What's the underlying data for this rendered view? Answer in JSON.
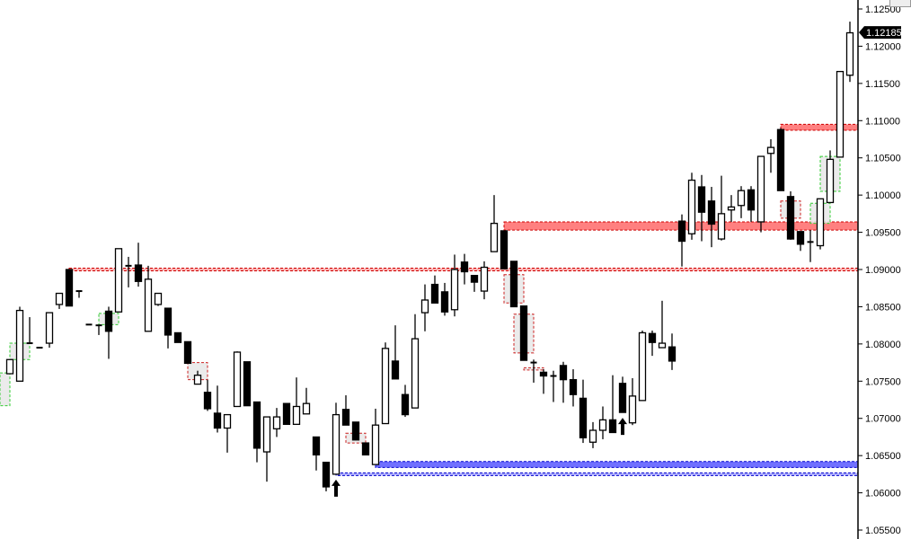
{
  "chart_data": {
    "type": "candlestick",
    "title": "",
    "ylim": [
      1.055,
      1.125
    ],
    "y_ticks": [
      "1.05500",
      "1.06000",
      "1.06500",
      "1.07000",
      "1.07500",
      "1.08000",
      "1.08500",
      "1.09000",
      "1.09500",
      "1.10000",
      "1.10500",
      "1.11000",
      "1.11500",
      "1.12000",
      "1.12500"
    ],
    "current_price": "1.12185",
    "colors": {
      "bull_body": "#ffffff",
      "bear_body": "#000000",
      "supply_zone": "#ff8080",
      "supply_line": "#cc0000",
      "demand_zone": "#7070ff",
      "demand_line": "#0000cc",
      "green_box": "#33cc33",
      "red_box": "#cc2222",
      "box_fill": "#e8e8e8"
    },
    "candles": [
      [
        1.076,
        1.0779,
        1.076,
        1.0779
      ],
      [
        1.075,
        1.085,
        1.075,
        1.0845
      ],
      [
        1.0801,
        1.0836,
        1.0801,
        1.0801
      ],
      [
        1.0795,
        1.0795,
        1.0795,
        1.0795
      ],
      [
        1.0801,
        1.0842,
        1.0795,
        1.0842
      ],
      [
        1.0853,
        1.0868,
        1.0847,
        1.0868
      ],
      [
        1.09,
        1.09,
        1.0851,
        1.0851
      ],
      [
        1.0871,
        1.0871,
        1.0862,
        1.0871
      ],
      [
        1.0826,
        1.0826,
        1.0826,
        1.0826
      ],
      [
        1.0825,
        1.0825,
        1.0812,
        1.0825
      ],
      [
        1.0844,
        1.085,
        1.078,
        1.0817
      ],
      [
        1.0843,
        1.0928,
        1.0843,
        1.0928
      ],
      [
        1.0905,
        1.0917,
        1.0876,
        1.0905
      ],
      [
        1.0906,
        1.0936,
        1.0877,
        1.0884
      ],
      [
        1.0817,
        1.0905,
        1.0817,
        1.0887
      ],
      [
        1.0853,
        1.0868,
        1.0851,
        1.0868
      ],
      [
        1.0848,
        1.0848,
        1.0794,
        1.0812
      ],
      [
        1.0815,
        1.0815,
        1.0802,
        1.0802
      ],
      [
        1.0803,
        1.0803,
        1.0774,
        1.0774
      ],
      [
        1.0746,
        1.0764,
        1.0746,
        1.0758
      ],
      [
        1.0735,
        1.0752,
        1.071,
        1.0713
      ],
      [
        1.0707,
        1.0744,
        1.0681,
        1.0687
      ],
      [
        1.0687,
        1.0705,
        1.0654,
        1.0705
      ],
      [
        1.0716,
        1.079,
        1.0716,
        1.0789
      ],
      [
        1.0776,
        1.0776,
        1.0717,
        1.0717
      ],
      [
        1.0722,
        1.0722,
        1.0641,
        1.066
      ],
      [
        1.0655,
        1.0702,
        1.0615,
        1.0702
      ],
      [
        1.0686,
        1.0714,
        1.0675,
        1.0702
      ],
      [
        1.072,
        1.072,
        1.0692,
        1.0692
      ],
      [
        1.0692,
        1.0755,
        1.0692,
        1.0716
      ],
      [
        1.0706,
        1.0741,
        1.0706,
        1.072
      ],
      [
        1.0675,
        1.0675,
        1.063,
        1.0651
      ],
      [
        1.0641,
        1.0641,
        1.0602,
        1.0608
      ],
      [
        1.0625,
        1.0721,
        1.0625,
        1.0705
      ],
      [
        1.0712,
        1.0731,
        1.0691,
        1.0691
      ],
      [
        1.0695,
        1.0695,
        1.0671,
        1.0671
      ],
      [
        1.0667,
        1.0667,
        1.0651,
        1.0651
      ],
      [
        1.0638,
        1.0713,
        1.0638,
        1.0691
      ],
      [
        1.0693,
        1.0802,
        1.0693,
        1.0794
      ],
      [
        1.0777,
        1.0825,
        1.0753,
        1.0753
      ],
      [
        1.0732,
        1.0745,
        1.0702,
        1.0705
      ],
      [
        1.0714,
        1.084,
        1.0714,
        1.0807
      ],
      [
        1.0842,
        1.088,
        1.0817,
        1.0859
      ],
      [
        1.088,
        1.0892,
        1.0855,
        1.0855
      ],
      [
        1.087,
        1.0882,
        1.0838,
        1.0843
      ],
      [
        1.0846,
        1.092,
        1.0837,
        1.09
      ],
      [
        1.091,
        1.0921,
        1.088,
        1.0897
      ],
      [
        1.0892,
        1.0892,
        1.087,
        1.0883
      ],
      [
        1.0871,
        1.0911,
        1.086,
        1.0903
      ],
      [
        1.0924,
        1.1,
        1.0924,
        1.0962
      ],
      [
        1.0952,
        1.0952,
        1.0901,
        1.0901
      ],
      [
        1.0911,
        1.0911,
        1.085,
        1.085
      ],
      [
        1.0851,
        1.0851,
        1.0778,
        1.0778
      ],
      [
        1.0775,
        1.0779,
        1.0748,
        1.0775
      ],
      [
        1.0762,
        1.0766,
        1.0733,
        1.0757
      ],
      [
        1.0757,
        1.0764,
        1.0722,
        1.0757
      ],
      [
        1.0771,
        1.0776,
        1.0721,
        1.0752
      ],
      [
        1.0752,
        1.0766,
        1.0716,
        1.0732
      ],
      [
        1.0727,
        1.0752,
        1.0667,
        1.0674
      ],
      [
        1.0668,
        1.0695,
        1.066,
        1.0684
      ],
      [
        1.0684,
        1.0716,
        1.0672,
        1.0698
      ],
      [
        1.0698,
        1.0758,
        1.0681,
        1.0681
      ],
      [
        1.0747,
        1.0756,
        1.0708,
        1.0708
      ],
      [
        1.0694,
        1.0754,
        1.0691,
        1.073
      ],
      [
        1.0724,
        1.0818,
        1.0724,
        1.0815
      ],
      [
        1.0814,
        1.0818,
        1.0784,
        1.0802
      ],
      [
        1.0795,
        1.0858,
        1.0795,
        1.0801
      ],
      [
        1.0796,
        1.0814,
        1.0765,
        1.0777
      ],
      [
        1.0965,
        1.0974,
        1.0904,
        1.0938
      ],
      [
        1.0948,
        1.103,
        1.094,
        1.102
      ],
      [
        1.1011,
        1.1027,
        1.0938,
        1.0977
      ],
      [
        1.0992,
        1.1011,
        1.093,
        1.0961
      ],
      [
        1.0941,
        1.1026,
        1.0939,
        1.0975
      ],
      [
        1.098,
        1.1,
        1.0964,
        1.0984
      ],
      [
        1.0986,
        1.1012,
        1.0969,
        1.1006
      ],
      [
        1.1007,
        1.1012,
        1.0964,
        1.098
      ],
      [
        1.0964,
        1.1052,
        1.095,
        1.1052
      ],
      [
        1.1056,
        1.1075,
        1.103,
        1.1064
      ],
      [
        1.1088,
        1.109,
        1.1006,
        1.1006
      ],
      [
        1.0998,
        1.1005,
        1.094,
        1.0941
      ],
      [
        1.0951,
        1.0951,
        1.0925,
        1.0934
      ],
      [
        1.0937,
        1.0953,
        1.091,
        1.0937
      ],
      [
        1.0932,
        1.0995,
        1.0927,
        1.0995
      ],
      [
        1.099,
        1.106,
        1.099,
        1.1048
      ],
      [
        1.1051,
        1.1166,
        1.1051,
        1.1166
      ],
      [
        1.1161,
        1.1233,
        1.1152,
        1.1218
      ]
    ],
    "candle_format": [
      "open",
      "high",
      "low",
      "close"
    ],
    "zones": [
      {
        "kind": "supply",
        "from_index": 50,
        "top": 1.0964,
        "bottom": 1.0953
      },
      {
        "kind": "supply",
        "from_index": 78,
        "top": 1.1095,
        "bottom": 1.1087
      },
      {
        "kind": "demand",
        "from_index": 37,
        "top": 1.0642,
        "bottom": 1.0634
      }
    ],
    "lines": [
      {
        "kind": "supply",
        "from_index": 6,
        "price": 1.09
      },
      {
        "kind": "demand",
        "from_index": 33,
        "price": 1.0625
      }
    ],
    "boxes": [
      {
        "color": "green",
        "from_index": -1,
        "to_index": 0,
        "top": 1.0761,
        "bottom": 1.0717
      },
      {
        "color": "green",
        "from_index": 0,
        "to_index": 2,
        "top": 1.0801,
        "bottom": 1.0779
      },
      {
        "color": "green",
        "from_index": 9,
        "to_index": 11,
        "top": 1.0841,
        "bottom": 1.0826
      },
      {
        "color": "red",
        "from_index": 18,
        "to_index": 20,
        "top": 1.0775,
        "bottom": 1.0752
      },
      {
        "color": "red",
        "from_index": 34,
        "to_index": 36,
        "top": 1.068,
        "bottom": 1.0667
      },
      {
        "color": "red",
        "from_index": 50,
        "to_index": 52,
        "top": 1.0893,
        "bottom": 1.0855
      },
      {
        "color": "red",
        "from_index": 51,
        "to_index": 53,
        "top": 1.084,
        "bottom": 1.0788
      },
      {
        "color": "red",
        "from_index": 52,
        "to_index": 54,
        "top": 1.0768,
        "bottom": 1.0765
      },
      {
        "color": "red",
        "from_index": 78,
        "to_index": 80,
        "top": 1.0992,
        "bottom": 1.0969
      },
      {
        "color": "green",
        "from_index": 81,
        "to_index": 83,
        "top": 1.0989,
        "bottom": 1.0962
      },
      {
        "color": "green",
        "from_index": 82,
        "to_index": 84,
        "top": 1.1052,
        "bottom": 1.1005
      }
    ],
    "arrows": [
      {
        "index": 33,
        "direction": "up"
      },
      {
        "index": 62,
        "direction": "up"
      }
    ]
  }
}
